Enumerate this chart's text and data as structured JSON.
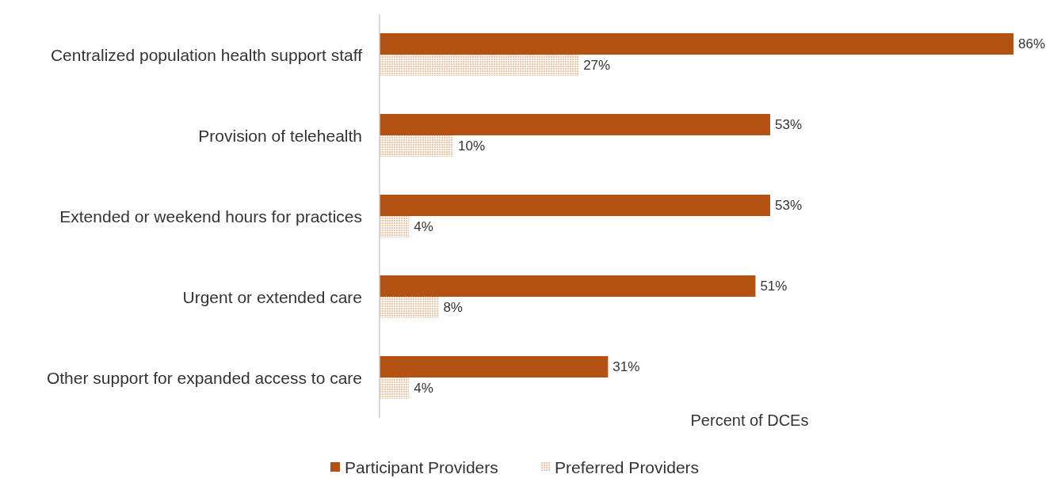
{
  "chart_data": {
    "type": "bar",
    "orientation": "horizontal",
    "xlabel": "Percent of DCEs",
    "legend": "bottom",
    "grid": false,
    "categories": [
      "Centralized population health support staff",
      "Provision of telehealth",
      "Extended or weekend hours for practices",
      "Urgent or extended care",
      "Other support for expanded access to care"
    ],
    "series": [
      {
        "name": "Participant Providers",
        "color": "#b35212",
        "values": [
          86,
          53,
          53,
          51,
          31
        ],
        "value_labels": [
          "86%",
          "53%",
          "53%",
          "51%",
          "31%"
        ]
      },
      {
        "name": "Preferred Providers",
        "color": "#f2c4a6",
        "values": [
          27,
          10,
          4,
          8,
          4
        ],
        "value_labels": [
          "27%",
          "10%",
          "4%",
          "8%",
          "4%"
        ]
      }
    ]
  }
}
